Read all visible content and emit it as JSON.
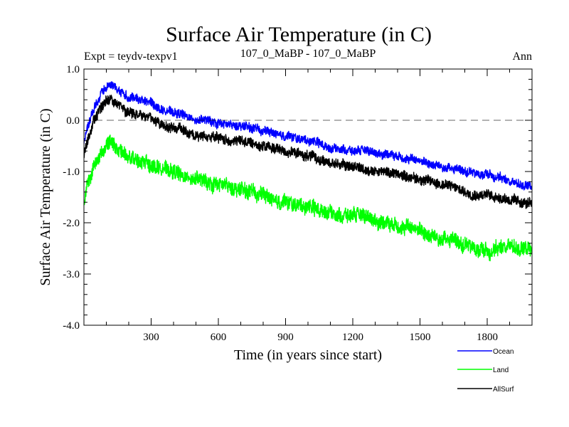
{
  "chart_data": {
    "type": "line",
    "title": "Surface Air Temperature (in C)",
    "subtitle_left": "Expt = teydv-texpv1",
    "subtitle_center": "107_0_MaBP - 107_0_MaBP",
    "subtitle_right": "Ann",
    "xlabel": "Time (in years since start)",
    "ylabel": "Surface Air Temperature (in C)",
    "xlim": [
      0,
      2000
    ],
    "ylim": [
      -4.0,
      1.0
    ],
    "xticks": [
      300,
      600,
      900,
      1200,
      1500,
      1800
    ],
    "xtick_labels": [
      "300",
      "600",
      "900",
      "1200",
      "1500",
      "1800"
    ],
    "yticks": [
      1.0,
      0.0,
      -1.0,
      -2.0,
      -3.0,
      -4.0
    ],
    "ytick_labels": [
      "1.0",
      "0.0",
      "-1.0",
      "-2.0",
      "-3.0",
      "-4.0"
    ],
    "reference_line": 0.0,
    "series": [
      {
        "name": "Ocean",
        "color": "#0000ff",
        "x": [
          0,
          20,
          50,
          80,
          110,
          140,
          170,
          200,
          250,
          300,
          350,
          400,
          450,
          500,
          550,
          600,
          650,
          700,
          750,
          800,
          850,
          900,
          950,
          1000,
          1050,
          1100,
          1150,
          1200,
          1250,
          1300,
          1350,
          1400,
          1450,
          1500,
          1550,
          1600,
          1650,
          1700,
          1750,
          1800,
          1850,
          1900,
          1950,
          2000
        ],
        "values": [
          -0.4,
          -0.1,
          0.3,
          0.55,
          0.7,
          0.65,
          0.55,
          0.45,
          0.4,
          0.35,
          0.2,
          0.15,
          0.1,
          0.0,
          0.0,
          -0.05,
          -0.1,
          -0.1,
          -0.15,
          -0.2,
          -0.25,
          -0.3,
          -0.35,
          -0.4,
          -0.45,
          -0.55,
          -0.55,
          -0.6,
          -0.6,
          -0.65,
          -0.65,
          -0.7,
          -0.75,
          -0.8,
          -0.85,
          -0.9,
          -0.95,
          -1.0,
          -1.05,
          -1.05,
          -1.1,
          -1.2,
          -1.25,
          -1.3
        ]
      },
      {
        "name": "Land",
        "color": "#00ff00",
        "x": [
          0,
          20,
          50,
          80,
          110,
          140,
          170,
          200,
          250,
          300,
          350,
          400,
          450,
          500,
          550,
          600,
          650,
          700,
          750,
          800,
          850,
          900,
          950,
          1000,
          1050,
          1100,
          1150,
          1200,
          1250,
          1300,
          1350,
          1400,
          1450,
          1500,
          1550,
          1600,
          1650,
          1700,
          1750,
          1800,
          1850,
          1900,
          1950,
          2000
        ],
        "values": [
          -1.6,
          -1.2,
          -0.85,
          -0.6,
          -0.45,
          -0.5,
          -0.6,
          -0.7,
          -0.8,
          -0.85,
          -0.95,
          -1.0,
          -1.1,
          -1.15,
          -1.2,
          -1.25,
          -1.3,
          -1.35,
          -1.4,
          -1.45,
          -1.55,
          -1.6,
          -1.65,
          -1.7,
          -1.75,
          -1.8,
          -1.85,
          -1.85,
          -1.9,
          -1.95,
          -2.0,
          -2.05,
          -2.1,
          -2.15,
          -2.25,
          -2.3,
          -2.35,
          -2.45,
          -2.5,
          -2.55,
          -2.5,
          -2.45,
          -2.5,
          -2.55
        ]
      },
      {
        "name": "AllSurf",
        "color": "#000000",
        "x": [
          0,
          20,
          50,
          80,
          110,
          140,
          170,
          200,
          250,
          300,
          350,
          400,
          450,
          500,
          550,
          600,
          650,
          700,
          750,
          800,
          850,
          900,
          950,
          1000,
          1050,
          1100,
          1150,
          1200,
          1250,
          1300,
          1350,
          1400,
          1450,
          1500,
          1550,
          1600,
          1650,
          1700,
          1750,
          1800,
          1850,
          1900,
          1950,
          2000
        ],
        "values": [
          -0.7,
          -0.35,
          0.05,
          0.3,
          0.4,
          0.35,
          0.25,
          0.15,
          0.1,
          0.05,
          -0.1,
          -0.15,
          -0.2,
          -0.3,
          -0.3,
          -0.35,
          -0.4,
          -0.4,
          -0.45,
          -0.5,
          -0.55,
          -0.6,
          -0.65,
          -0.7,
          -0.75,
          -0.85,
          -0.85,
          -0.9,
          -0.95,
          -1.0,
          -1.0,
          -1.05,
          -1.1,
          -1.15,
          -1.2,
          -1.25,
          -1.3,
          -1.4,
          -1.45,
          -1.45,
          -1.5,
          -1.55,
          -1.6,
          -1.65
        ]
      }
    ],
    "legend": [
      "Ocean",
      "Land",
      "AllSurf"
    ],
    "legend_position": "bottom-right"
  }
}
